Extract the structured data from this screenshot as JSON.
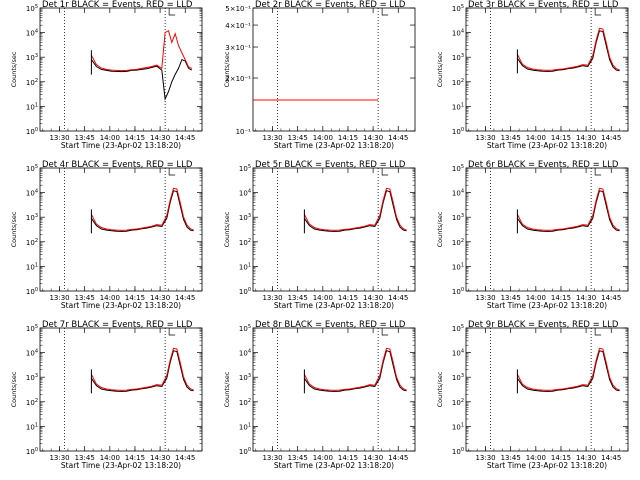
{
  "figure": {
    "x_axis_label": "Start Time (23-Apr-02 13:18:20)",
    "x_tick_labels": [
      "13:30",
      "13:45",
      "14:00",
      "14:15",
      "14:30",
      "14:45"
    ],
    "y_axis_label": "Counts/sec",
    "y_axis_label_alt": "Counts/sec",
    "series_colors": {
      "events": "#000000",
      "lld": "#ff0000"
    }
  },
  "chart_data": [
    {
      "type": "line",
      "title": "Det 1r BLACK = Events, RED = LLD",
      "y_scale": "log",
      "ylim": [
        1,
        100000
      ],
      "y_ticks": [
        1,
        10,
        100,
        1000,
        10000,
        100000
      ],
      "xlim": [
        "13:18:20",
        "14:55:00"
      ],
      "vlines": [
        "13:33:00",
        "14:33:00"
      ],
      "x": [
        "13:49",
        "13:52",
        "13:55",
        "13:58",
        "14:01",
        "14:04",
        "14:07",
        "14:10",
        "14:13",
        "14:16",
        "14:19",
        "14:22",
        "14:25",
        "14:28",
        "14:31",
        "14:33",
        "14:35",
        "14:37",
        "14:39",
        "14:41",
        "14:43",
        "14:45",
        "14:47",
        "14:49"
      ],
      "series": [
        {
          "name": "Events",
          "values": [
            800,
            420,
            320,
            290,
            270,
            265,
            260,
            265,
            290,
            300,
            320,
            340,
            380,
            430,
            300,
            20,
            40,
            100,
            200,
            350,
            800,
            700,
            350,
            300
          ]
        },
        {
          "name": "LLD",
          "values": [
            1200,
            500,
            360,
            320,
            300,
            290,
            285,
            290,
            310,
            320,
            350,
            380,
            420,
            480,
            350,
            10000,
            12000,
            4000,
            9000,
            3000,
            1500,
            800,
            400,
            350
          ]
        }
      ]
    },
    {
      "type": "line",
      "title": "Det 2r BLACK = Events, RED = LLD",
      "y_scale": "log",
      "ylim": [
        0.1,
        0.5
      ],
      "y_ticks": [
        0.1,
        0.2,
        0.3,
        0.4,
        0.5
      ],
      "y_tick_labels": [
        "10⁻¹",
        "2×10⁻¹",
        "3×10⁻¹",
        "4×10⁻¹",
        "5×10⁻¹"
      ],
      "xlim": [
        "13:18:20",
        "14:55:00"
      ],
      "vlines": [
        "13:33:00",
        "14:33:00"
      ],
      "x": [
        "13:18:20",
        "14:33:00"
      ],
      "series": [
        {
          "name": "Events",
          "values": [
            0.15,
            0.15
          ]
        },
        {
          "name": "LLD",
          "values": [
            0.15,
            0.15
          ]
        }
      ]
    },
    {
      "type": "line",
      "title": "Det 3r BLACK = Events, RED = LLD",
      "y_scale": "log",
      "ylim": [
        1,
        100000
      ],
      "y_ticks": [
        1,
        10,
        100,
        1000,
        10000,
        100000
      ],
      "xlim": [
        "13:18:20",
        "14:55:00"
      ],
      "vlines": [
        "13:33:00",
        "14:33:00"
      ],
      "x": [
        "13:49",
        "13:52",
        "13:55",
        "13:58",
        "14:01",
        "14:04",
        "14:07",
        "14:10",
        "14:13",
        "14:16",
        "14:19",
        "14:22",
        "14:25",
        "14:28",
        "14:31",
        "14:34",
        "14:36",
        "14:38",
        "14:40",
        "14:42",
        "14:44",
        "14:46",
        "14:48",
        "14:50"
      ],
      "series": [
        {
          "name": "Events",
          "values": [
            900,
            450,
            330,
            300,
            280,
            270,
            265,
            270,
            300,
            310,
            340,
            360,
            400,
            450,
            420,
            900,
            4000,
            12000,
            11000,
            3000,
            800,
            400,
            300,
            280
          ]
        },
        {
          "name": "LLD",
          "values": [
            1300,
            520,
            380,
            330,
            310,
            300,
            290,
            300,
            320,
            330,
            360,
            390,
            430,
            500,
            470,
            1200,
            5000,
            15000,
            14000,
            4000,
            1000,
            480,
            340,
            300
          ]
        }
      ]
    },
    {
      "type": "line",
      "title": "Det 4r BLACK = Events, RED = LLD",
      "y_scale": "log",
      "ylim": [
        1,
        100000
      ],
      "y_ticks": [
        1,
        10,
        100,
        1000,
        10000,
        100000
      ],
      "xlim": [
        "13:18:20",
        "14:55:00"
      ],
      "vlines": [
        "13:33:00",
        "14:33:00"
      ],
      "x": [
        "13:49",
        "13:52",
        "13:55",
        "13:58",
        "14:01",
        "14:04",
        "14:07",
        "14:10",
        "14:13",
        "14:16",
        "14:19",
        "14:22",
        "14:25",
        "14:28",
        "14:31",
        "14:34",
        "14:36",
        "14:38",
        "14:40",
        "14:42",
        "14:44",
        "14:46",
        "14:48",
        "14:50"
      ],
      "series": [
        {
          "name": "Events",
          "values": [
            900,
            450,
            330,
            300,
            280,
            270,
            265,
            270,
            300,
            310,
            340,
            360,
            400,
            450,
            420,
            900,
            4000,
            12000,
            11000,
            3000,
            800,
            400,
            300,
            280
          ]
        },
        {
          "name": "LLD",
          "values": [
            1300,
            520,
            380,
            330,
            310,
            300,
            290,
            300,
            320,
            330,
            360,
            390,
            430,
            500,
            470,
            1200,
            5000,
            15000,
            14000,
            4000,
            1000,
            480,
            340,
            300
          ]
        }
      ]
    },
    {
      "type": "line",
      "title": "Det 5r BLACK = Events, RED = LLD",
      "y_scale": "log",
      "ylim": [
        1,
        100000
      ],
      "y_ticks": [
        1,
        10,
        100,
        1000,
        10000,
        100000
      ],
      "xlim": [
        "13:18:20",
        "14:55:00"
      ],
      "vlines": [
        "13:33:00",
        "14:33:00"
      ],
      "x": [
        "13:49",
        "13:52",
        "13:55",
        "13:58",
        "14:01",
        "14:04",
        "14:07",
        "14:10",
        "14:13",
        "14:16",
        "14:19",
        "14:22",
        "14:25",
        "14:28",
        "14:31",
        "14:34",
        "14:36",
        "14:38",
        "14:40",
        "14:42",
        "14:44",
        "14:46",
        "14:48",
        "14:50"
      ],
      "series": [
        {
          "name": "Events",
          "values": [
            900,
            450,
            330,
            300,
            280,
            270,
            265,
            270,
            300,
            310,
            340,
            360,
            400,
            450,
            420,
            900,
            4000,
            12000,
            11000,
            3000,
            800,
            400,
            300,
            280
          ]
        },
        {
          "name": "LLD",
          "values": [
            1300,
            520,
            380,
            330,
            310,
            300,
            290,
            300,
            320,
            330,
            360,
            390,
            430,
            500,
            470,
            1200,
            5000,
            15000,
            14000,
            4000,
            1000,
            480,
            340,
            300
          ]
        }
      ]
    },
    {
      "type": "line",
      "title": "Det 6r BLACK = Events, RED = LLD",
      "y_scale": "log",
      "ylim": [
        1,
        100000
      ],
      "y_ticks": [
        1,
        10,
        100,
        1000,
        10000,
        100000
      ],
      "xlim": [
        "13:18:20",
        "14:55:00"
      ],
      "vlines": [
        "13:33:00",
        "14:33:00"
      ],
      "x": [
        "13:49",
        "13:52",
        "13:55",
        "13:58",
        "14:01",
        "14:04",
        "14:07",
        "14:10",
        "14:13",
        "14:16",
        "14:19",
        "14:22",
        "14:25",
        "14:28",
        "14:31",
        "14:34",
        "14:36",
        "14:38",
        "14:40",
        "14:42",
        "14:44",
        "14:46",
        "14:48",
        "14:50"
      ],
      "series": [
        {
          "name": "Events",
          "values": [
            900,
            450,
            330,
            300,
            280,
            270,
            265,
            270,
            300,
            310,
            340,
            360,
            400,
            450,
            420,
            900,
            4000,
            12000,
            11000,
            3000,
            800,
            400,
            300,
            280
          ]
        },
        {
          "name": "LLD",
          "values": [
            1300,
            520,
            380,
            330,
            310,
            300,
            290,
            300,
            320,
            330,
            360,
            390,
            430,
            500,
            470,
            1200,
            5000,
            15000,
            14000,
            4000,
            1000,
            480,
            340,
            300
          ]
        }
      ]
    },
    {
      "type": "line",
      "title": "Det 7r BLACK = Events, RED = LLD",
      "y_scale": "log",
      "ylim": [
        1,
        100000
      ],
      "y_ticks": [
        1,
        10,
        100,
        1000,
        10000,
        100000
      ],
      "xlim": [
        "13:18:20",
        "14:55:00"
      ],
      "vlines": [
        "13:33:00",
        "14:33:00"
      ],
      "x": [
        "13:49",
        "13:52",
        "13:55",
        "13:58",
        "14:01",
        "14:04",
        "14:07",
        "14:10",
        "14:13",
        "14:16",
        "14:19",
        "14:22",
        "14:25",
        "14:28",
        "14:31",
        "14:34",
        "14:36",
        "14:38",
        "14:40",
        "14:42",
        "14:44",
        "14:46",
        "14:48",
        "14:50"
      ],
      "series": [
        {
          "name": "Events",
          "values": [
            900,
            450,
            330,
            300,
            280,
            270,
            265,
            270,
            300,
            310,
            340,
            360,
            400,
            450,
            420,
            900,
            4000,
            12000,
            11000,
            3000,
            800,
            400,
            300,
            280
          ]
        },
        {
          "name": "LLD",
          "values": [
            1300,
            520,
            380,
            330,
            310,
            300,
            290,
            300,
            320,
            330,
            360,
            390,
            430,
            500,
            470,
            1200,
            5000,
            15000,
            14000,
            4000,
            1000,
            480,
            340,
            300
          ]
        }
      ]
    },
    {
      "type": "line",
      "title": "Det 8r BLACK = Events, RED = LLD",
      "y_scale": "log",
      "ylim": [
        1,
        100000
      ],
      "y_ticks": [
        1,
        10,
        100,
        1000,
        10000,
        100000
      ],
      "xlim": [
        "13:18:20",
        "14:55:00"
      ],
      "vlines": [
        "13:33:00",
        "14:33:00"
      ],
      "x": [
        "13:49",
        "13:52",
        "13:55",
        "13:58",
        "14:01",
        "14:04",
        "14:07",
        "14:10",
        "14:13",
        "14:16",
        "14:19",
        "14:22",
        "14:25",
        "14:28",
        "14:31",
        "14:34",
        "14:36",
        "14:38",
        "14:40",
        "14:42",
        "14:44",
        "14:46",
        "14:48",
        "14:50"
      ],
      "series": [
        {
          "name": "Events",
          "values": [
            900,
            450,
            330,
            300,
            280,
            270,
            265,
            270,
            300,
            310,
            340,
            360,
            400,
            450,
            420,
            900,
            4000,
            12000,
            11000,
            3000,
            800,
            400,
            300,
            280
          ]
        },
        {
          "name": "LLD",
          "values": [
            1300,
            520,
            380,
            330,
            310,
            300,
            290,
            300,
            320,
            330,
            360,
            390,
            430,
            500,
            470,
            1200,
            5000,
            15000,
            14000,
            4000,
            1000,
            480,
            340,
            300
          ]
        }
      ]
    },
    {
      "type": "line",
      "title": "Det 9r BLACK = Events, RED = LLD",
      "y_scale": "log",
      "ylim": [
        1,
        100000
      ],
      "y_ticks": [
        1,
        10,
        100,
        1000,
        10000,
        100000
      ],
      "xlim": [
        "13:18:20",
        "14:55:00"
      ],
      "vlines": [
        "13:33:00",
        "14:33:00"
      ],
      "x": [
        "13:49",
        "13:52",
        "13:55",
        "13:58",
        "14:01",
        "14:04",
        "14:07",
        "14:10",
        "14:13",
        "14:16",
        "14:19",
        "14:22",
        "14:25",
        "14:28",
        "14:31",
        "14:34",
        "14:36",
        "14:38",
        "14:40",
        "14:42",
        "14:44",
        "14:46",
        "14:48",
        "14:50"
      ],
      "series": [
        {
          "name": "Events",
          "values": [
            900,
            450,
            330,
            300,
            280,
            270,
            265,
            270,
            300,
            310,
            340,
            360,
            400,
            450,
            420,
            900,
            4000,
            12000,
            11000,
            3000,
            800,
            400,
            300,
            280
          ]
        },
        {
          "name": "LLD",
          "values": [
            1300,
            520,
            380,
            330,
            310,
            300,
            290,
            300,
            320,
            330,
            360,
            390,
            430,
            500,
            470,
            1200,
            5000,
            15000,
            14000,
            4000,
            1000,
            480,
            340,
            300
          ]
        }
      ]
    }
  ]
}
